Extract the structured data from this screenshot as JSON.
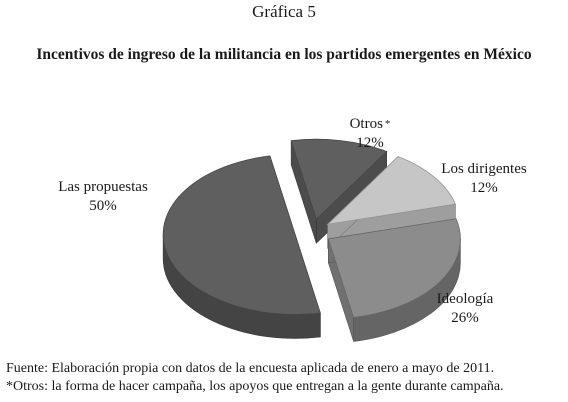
{
  "figure_label": "Gráfica 5",
  "chart_data": {
    "type": "pie",
    "title": "Incentivos de ingreso de la militancia en los partidos emergentes en México",
    "slices": [
      {
        "label": "Las propuestas",
        "value": 50,
        "value_label": "50%",
        "color": "#5f5f5f"
      },
      {
        "label": "Otros",
        "label_mark": "*",
        "value": 12,
        "value_label": "12%",
        "color": "#5f5f5f"
      },
      {
        "label": "Los dirigentes",
        "value": 12,
        "value_label": "12%",
        "color": "#c6c6c6"
      },
      {
        "label": "Ideología",
        "value": 26,
        "value_label": "26%",
        "color": "#8c8c8c"
      }
    ],
    "exploded": true,
    "style": "3d"
  },
  "footnotes": [
    "Fuente: Elaboración propia con datos de la encuesta aplicada de enero a mayo de 2011.",
    "*Otros: la forma de hacer campaña, los apoyos que entregan a la gente durante campaña."
  ]
}
